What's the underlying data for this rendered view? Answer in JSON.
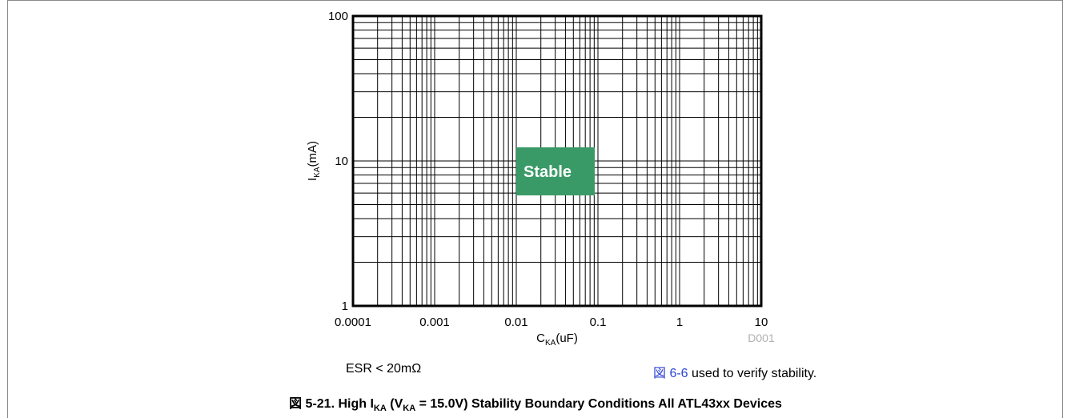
{
  "chart_data": {
    "type": "scatter",
    "xscale": "log",
    "yscale": "log",
    "xlim": [
      0.0001,
      10
    ],
    "ylim": [
      1,
      100
    ],
    "grid": true,
    "xticks": [
      "0.0001",
      "0.001",
      "0.01",
      "0.1",
      "1",
      "10"
    ],
    "yticks": [
      "1",
      "10",
      "100"
    ],
    "xlabel_main": "C",
    "xlabel_sub": "KA",
    "xlabel_unit": "(uF)",
    "ylabel_main": "I",
    "ylabel_sub": "KA",
    "ylabel_unit": "(mA)",
    "region_label": "Stable",
    "region_color": "#3a9a67",
    "series": [],
    "watermark": "D001"
  },
  "notes": {
    "left": "ESR < 20mΩ",
    "right_ref": "図 6-6",
    "right_text": " used to verify stability."
  },
  "caption": {
    "prefix": "図 5-21. High I",
    "sub1": "KA",
    "mid": " (V",
    "sub2": "KA",
    "suffix": " = 15.0V) Stability Boundary Conditions All ATL43xx Devices"
  }
}
